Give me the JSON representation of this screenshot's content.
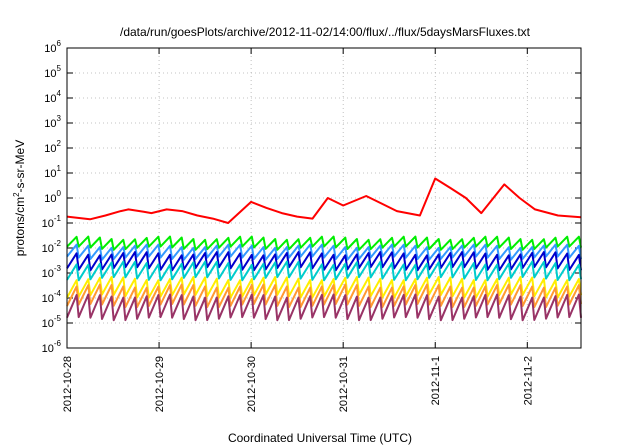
{
  "chart_data": {
    "type": "line",
    "title": "/data/run/goesPlots/archive/2012-11-02/14:00/flux/../flux/5daysMarsFluxes.txt",
    "xlabel": "Coordinated Universal Time (UTC)",
    "ylabel_parts": [
      "protons/cm",
      "2",
      "-s-sr-MeV"
    ],
    "y_scale": "log",
    "ylim": [
      1e-06,
      1000000.0
    ],
    "xlim": [
      "2012-10-28T00:00",
      "2012-11-02T14:00"
    ],
    "grid": true,
    "legend": "none",
    "x_ticks": [
      "2012-10-28",
      "2012-10-29",
      "2012-10-30",
      "2012-10-31",
      "2012-11-1",
      "2012-11-2"
    ],
    "y_ticks": [
      {
        "base": "10",
        "exp": "-6",
        "value": 1e-06
      },
      {
        "base": "10",
        "exp": "-5",
        "value": 1e-05
      },
      {
        "base": "10",
        "exp": "-4",
        "value": 0.0001
      },
      {
        "base": "10",
        "exp": "-3",
        "value": 0.001
      },
      {
        "base": "10",
        "exp": "-2",
        "value": 0.01
      },
      {
        "base": "10",
        "exp": "-1",
        "value": 0.1
      },
      {
        "base": "10",
        "exp": "0",
        "value": 1
      },
      {
        "base": "10",
        "exp": "1",
        "value": 10
      },
      {
        "base": "10",
        "exp": "2",
        "value": 100
      },
      {
        "base": "10",
        "exp": "3",
        "value": 1000
      },
      {
        "base": "10",
        "exp": "4",
        "value": 10000
      },
      {
        "base": "10",
        "exp": "5",
        "value": 100000
      },
      {
        "base": "10",
        "exp": "6",
        "value": 1000000
      }
    ],
    "series": [
      {
        "color": "#ff0000",
        "style": "flux-steps",
        "x": [
          "2012-10-28T00:00",
          "2012-10-28T06:00",
          "2012-10-28T10:00",
          "2012-10-28T14:00",
          "2012-10-28T16:00",
          "2012-10-28T20:00",
          "2012-10-28T22:00",
          "2012-10-29T02:00",
          "2012-10-29T06:00",
          "2012-10-29T10:00",
          "2012-10-29T14:00",
          "2012-10-29T18:00",
          "2012-10-30T00:00",
          "2012-10-30T04:00",
          "2012-10-30T08:00",
          "2012-10-30T12:00",
          "2012-10-30T16:00",
          "2012-10-30T20:00",
          "2012-10-31T00:00",
          "2012-10-31T06:00",
          "2012-10-31T10:00",
          "2012-10-31T14:00",
          "2012-10-31T20:00",
          "2012-11-01T00:00",
          "2012-11-01T04:00",
          "2012-11-01T08:00",
          "2012-11-01T12:00",
          "2012-11-01T18:00",
          "2012-11-01T22:00",
          "2012-11-02T02:00",
          "2012-11-02T08:00",
          "2012-11-02T14:00"
        ],
        "y": [
          0.18,
          0.14,
          0.2,
          0.3,
          0.35,
          0.28,
          0.25,
          0.35,
          0.3,
          0.2,
          0.15,
          0.1,
          0.7,
          0.4,
          0.25,
          0.18,
          0.15,
          1.0,
          0.5,
          1.2,
          0.6,
          0.3,
          0.2,
          6.0,
          2.5,
          1.0,
          0.25,
          3.5,
          1.0,
          0.35,
          0.2,
          0.17
        ]
      },
      {
        "color": "#00ee00",
        "style": "sawtooth",
        "high": 0.025,
        "low": 0.01
      },
      {
        "color": "#3399ff",
        "style": "sawtooth",
        "high": 0.012,
        "low": 0.004
      },
      {
        "color": "#0000cc",
        "style": "sawtooth",
        "high": 0.006,
        "low": 0.0015
      },
      {
        "color": "#00cccc",
        "style": "sawtooth",
        "high": 0.0025,
        "low": 0.0006
      },
      {
        "color": "#ffee00",
        "style": "sawtooth",
        "high": 0.0006,
        "low": 0.00012
      },
      {
        "color": "#ff9933",
        "style": "sawtooth",
        "high": 0.0003,
        "low": 5e-05
      },
      {
        "color": "#993366",
        "style": "sawtooth",
        "high": 0.00012,
        "low": 1.5e-05
      }
    ]
  }
}
